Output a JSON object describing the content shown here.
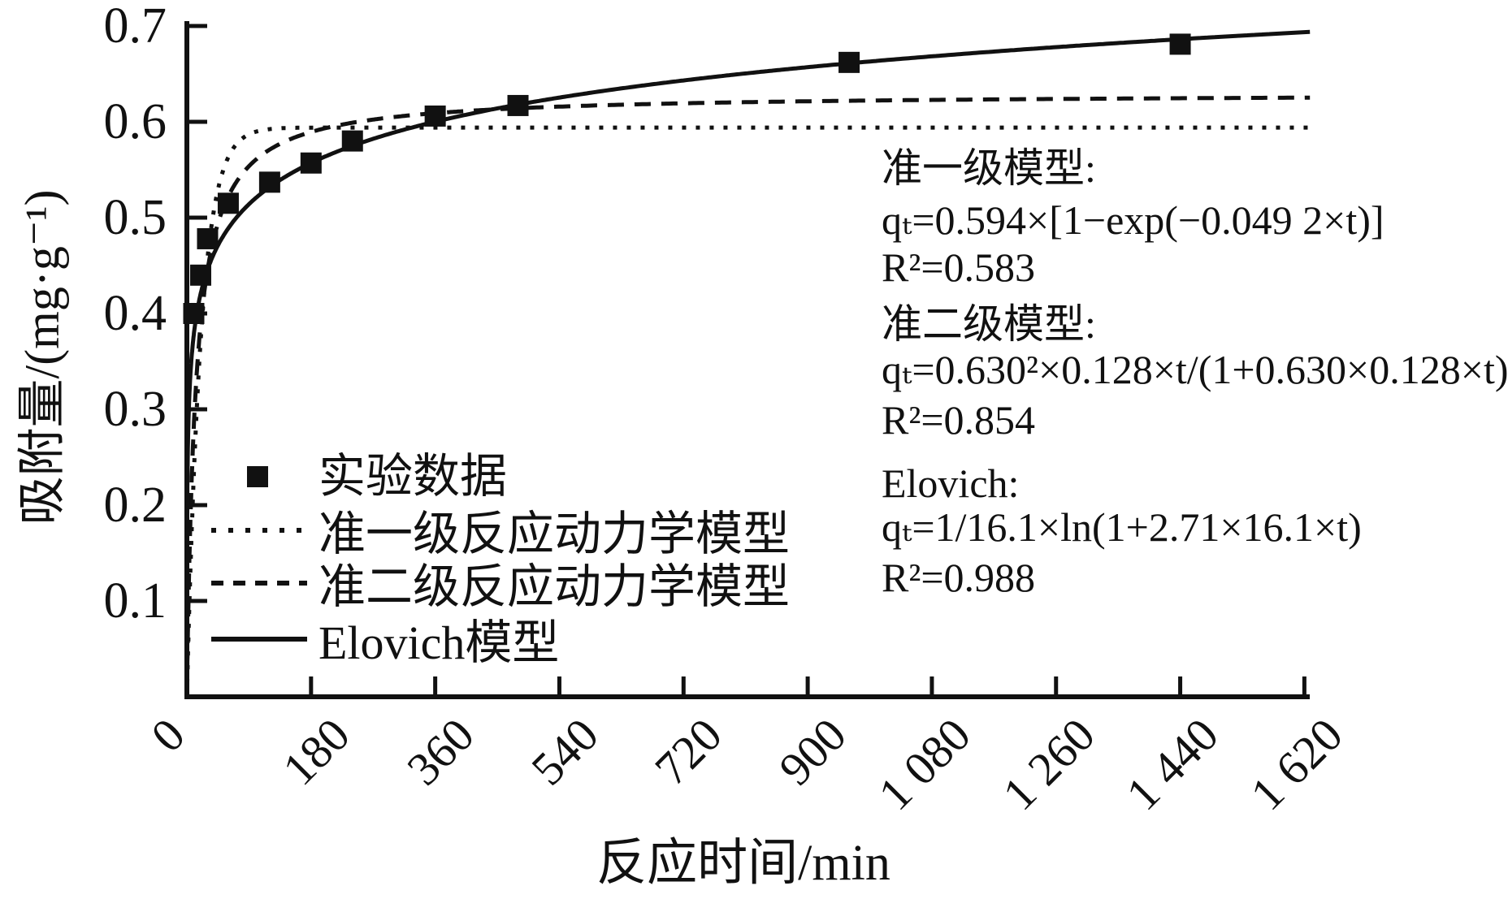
{
  "figure": {
    "background": "#ffffff",
    "ink_color": "#111111"
  },
  "chart_data": {
    "type": "line",
    "title": "",
    "xlabel": "反应时间/min",
    "ylabel": "吸附量/(mg·g⁻¹)",
    "xlim": [
      0,
      1655
    ],
    "ylim": [
      0,
      0.7
    ],
    "grid": false,
    "legend_position": "inside lower-left",
    "xticks": [
      0,
      180,
      360,
      540,
      720,
      900,
      1080,
      1260,
      1440,
      1620
    ],
    "xtick_labels": [
      "0",
      "180",
      "360",
      "540",
      "720",
      "900",
      "1 080",
      "1 260",
      "1 440",
      "1 620"
    ],
    "yticks": [
      0.1,
      0.2,
      0.3,
      0.4,
      0.5,
      0.6,
      0.7
    ],
    "ytick_labels": [
      "0.1",
      "0.2",
      "0.3",
      "0.4",
      "0.5",
      "0.6",
      "0.7"
    ],
    "series": [
      {
        "name": "实验数据",
        "type": "scatter",
        "marker": "filled-square",
        "x": [
          10,
          20,
          30,
          60,
          120,
          180,
          240,
          360,
          480,
          960,
          1440
        ],
        "y": [
          0.4,
          0.44,
          0.478,
          0.515,
          0.537,
          0.557,
          0.58,
          0.606,
          0.617,
          0.662,
          0.681
        ]
      },
      {
        "name": "准一级反应动力学模型",
        "type": "line",
        "line_style": "dotted",
        "model": "pseudo_first_order",
        "equation": "qₜ=0.594×[1−exp(−0.049 2×t)]",
        "params": {
          "qe": 0.594,
          "k1": 0.0492
        },
        "r_squared": 0.583
      },
      {
        "name": "准二级反应动力学模型",
        "type": "line",
        "line_style": "dashed",
        "model": "pseudo_second_order",
        "equation": "qₜ=0.630²×0.128×t/(1+0.630×0.128×t)",
        "params": {
          "qe": 0.63,
          "k2": 0.128
        },
        "r_squared": 0.854
      },
      {
        "name": "Elovich模型",
        "type": "line",
        "line_style": "solid",
        "model": "elovich",
        "equation": "qₜ=1/16.1×ln(1+2.71×16.1×t)",
        "params": {
          "a": 2.71,
          "b": 16.1
        },
        "r_squared": 0.988
      }
    ],
    "annotations": {
      "lines": [
        "准一级模型:",
        "qₜ=0.594×[1−exp(−0.049 2×t)]",
        "R²=0.583",
        "准二级模型:",
        "qₜ=0.630²×0.128×t/(1+0.630×0.128×t)",
        "R²=0.854",
        "Elovich:",
        "qₜ=1/16.1×ln(1+2.71×16.1×t)",
        "R²=0.988"
      ]
    }
  }
}
